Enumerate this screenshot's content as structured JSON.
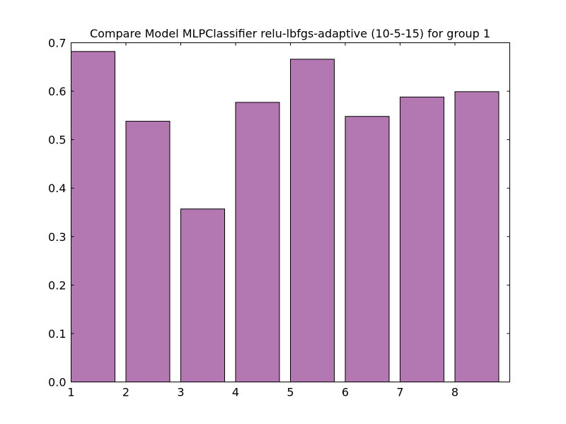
{
  "chart_data": {
    "type": "bar",
    "title": "Compare Model MLPClassifier relu-lbfgs-adaptive (10-5-15) for group 1",
    "xlabel": "",
    "ylabel": "",
    "categories": [
      "1",
      "2",
      "3",
      "4",
      "5",
      "6",
      "7",
      "8"
    ],
    "x": [
      1,
      2,
      3,
      4,
      5,
      6,
      7,
      8
    ],
    "values": [
      0.682,
      0.538,
      0.357,
      0.577,
      0.666,
      0.548,
      0.588,
      0.599
    ],
    "bar_width": 0.8,
    "xlim": [
      1,
      9
    ],
    "ylim": [
      0,
      0.7
    ],
    "xticks": [
      1,
      2,
      3,
      4,
      5,
      6,
      7,
      8
    ],
    "xtick_labels": [
      "1",
      "2",
      "3",
      "4",
      "5",
      "6",
      "7",
      "8"
    ],
    "yticks": [
      0.0,
      0.1,
      0.2,
      0.3,
      0.4,
      0.5,
      0.6,
      0.7
    ],
    "ytick_labels": [
      "0.0",
      "0.1",
      "0.2",
      "0.3",
      "0.4",
      "0.5",
      "0.6",
      "0.7"
    ],
    "bar_color": "#b377b2",
    "edge_color": "#000000",
    "grid": false,
    "legend": "none"
  }
}
